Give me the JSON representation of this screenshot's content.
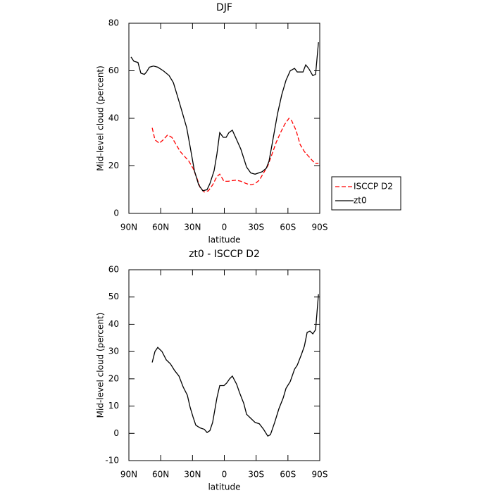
{
  "chart_data": [
    {
      "type": "line",
      "title": "DJF",
      "xlabel": "latitude",
      "ylabel": "Mid-level cloud (percent)",
      "xlim": [
        90,
        -90
      ],
      "xticks": [
        {
          "value": 90,
          "label": "90N"
        },
        {
          "value": 60,
          "label": "60N"
        },
        {
          "value": 30,
          "label": "30N"
        },
        0,
        {
          "value": -30,
          "label": "30S"
        },
        {
          "value": -60,
          "label": "60S"
        },
        {
          "value": -90,
          "label": "90S"
        }
      ],
      "ylim": [
        0,
        80
      ],
      "yticks": [
        0,
        20,
        40,
        60,
        80
      ],
      "legend": "right",
      "series": [
        {
          "name": "ISCCP D2",
          "color": "#ff0000",
          "dash": true,
          "x": [
            68,
            65.4,
            61.4,
            57.5,
            53.5,
            49.5,
            45.5,
            41.5,
            37.5,
            33.5,
            29.5,
            25.6,
            22.9,
            18.9,
            15,
            11,
            7,
            4.3,
            0.3,
            -3.7,
            -7.6,
            -11.6,
            -15.6,
            -21,
            -25,
            -29,
            -33,
            -37,
            -41,
            -45,
            -49,
            -53,
            -57,
            -61,
            -63.5,
            -67.6,
            -71.5,
            -75.5,
            -79.5,
            -83.5,
            -86,
            -88.8
          ],
          "values": [
            36,
            31,
            29.5,
            31,
            33,
            32,
            29,
            26,
            24,
            22,
            19,
            14.5,
            11,
            9,
            9.5,
            12,
            15.5,
            16.5,
            13.5,
            13.5,
            13.8,
            14,
            13.5,
            12.5,
            12,
            12.5,
            14,
            17,
            20,
            25,
            30,
            34,
            37.5,
            40,
            39,
            35,
            29,
            26,
            24,
            22,
            21,
            21
          ]
        },
        {
          "name": "zt0",
          "color": "#000000",
          "dash": false,
          "x": [
            88,
            85.3,
            81.4,
            78.7,
            75.4,
            73.4,
            70.7,
            66.8,
            62.8,
            57.5,
            52.1,
            48,
            44,
            40,
            35.5,
            32.2,
            28.2,
            24.2,
            20.3,
            16.3,
            13.6,
            9.6,
            7,
            4.3,
            1,
            -1.7,
            -4.3,
            -7.6,
            -11.6,
            -15.6,
            -21,
            -25,
            -29,
            -35.6,
            -39.6,
            -42.2,
            -46.2,
            -50.2,
            -54.2,
            -58.2,
            -62.2,
            -66.2,
            -68.8,
            -74.2,
            -76.8,
            -79.5,
            -83.4,
            -86.1,
            -88.8
          ],
          "values": [
            65.8,
            64,
            63.5,
            59,
            58.5,
            59.5,
            61.5,
            62,
            61.5,
            60,
            58,
            55,
            49,
            43,
            36,
            28,
            18,
            12,
            9.5,
            10,
            12.5,
            18,
            25,
            34,
            32,
            32,
            34,
            35,
            31,
            27,
            19.5,
            17,
            16.5,
            17.5,
            19,
            22,
            32,
            42,
            50,
            56,
            60,
            61,
            59.5,
            59.5,
            62.5,
            61,
            58,
            58.5,
            72
          ]
        }
      ]
    },
    {
      "type": "line",
      "title": "zt0 - ISCCP D2",
      "xlabel": "latitude",
      "ylabel": "Mid-level cloud (percent)",
      "xlim": [
        90,
        -90
      ],
      "xticks": [
        {
          "value": 90,
          "label": "90N"
        },
        {
          "value": 60,
          "label": "60N"
        },
        {
          "value": 30,
          "label": "30N"
        },
        0,
        {
          "value": -30,
          "label": "30S"
        },
        {
          "value": -60,
          "label": "60S"
        },
        {
          "value": -90,
          "label": "90S"
        }
      ],
      "ylim": [
        -10,
        60
      ],
      "yticks": [
        -10,
        0,
        10,
        20,
        30,
        40,
        50,
        60
      ],
      "series": [
        {
          "color": "#000000",
          "dash": false,
          "x": [
            68,
            65.4,
            62.8,
            58.8,
            54.8,
            50.8,
            46.8,
            42.8,
            38.8,
            34.9,
            32.2,
            29.5,
            26.9,
            22.9,
            18.9,
            16.3,
            13.6,
            11,
            7,
            4.3,
            0.3,
            -2.3,
            -5,
            -7.6,
            -11.6,
            -14.3,
            -18.3,
            -21,
            -25,
            -29,
            -33,
            -37,
            -41,
            -43.5,
            -47.5,
            -51.5,
            -55.5,
            -58.2,
            -62.2,
            -66.2,
            -68.8,
            -72.8,
            -75.5,
            -78.1,
            -80.8,
            -83.5,
            -86.1,
            -88.8
          ],
          "values": [
            26,
            30,
            31.5,
            30,
            27,
            25.5,
            23,
            21,
            17,
            14,
            9.5,
            6,
            3,
            2,
            1.5,
            0.3,
            1,
            4,
            13,
            17.5,
            17.5,
            18.5,
            20,
            21,
            18,
            15,
            11,
            7,
            5.5,
            4,
            3.5,
            1.5,
            -1,
            -0.5,
            4,
            9,
            13,
            16.5,
            19,
            23.5,
            25,
            29,
            32,
            37,
            37.5,
            36.5,
            38,
            51
          ]
        }
      ]
    }
  ]
}
